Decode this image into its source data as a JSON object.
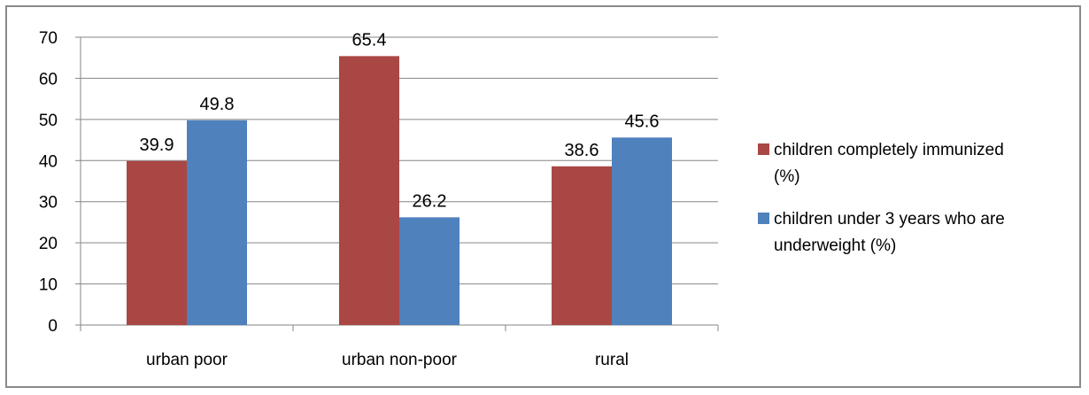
{
  "chart_data": {
    "type": "bar",
    "title": "",
    "xlabel": "",
    "ylabel": "",
    "categories": [
      "urban poor",
      "urban non-poor",
      "rural"
    ],
    "ylim": [
      0,
      70
    ],
    "yticks": [
      0,
      10,
      20,
      30,
      40,
      50,
      60,
      70
    ],
    "grid": true,
    "legend_position": "right",
    "series": [
      {
        "name_lines": [
          "children completely immunized",
          "(%)"
        ],
        "color": "#A94744",
        "values": [
          39.9,
          65.4,
          38.6
        ],
        "labels": [
          "39.9",
          "65.4",
          "38.6"
        ]
      },
      {
        "name_lines": [
          "children under 3 years who are",
          "underweight (%)"
        ],
        "color": "#4F81BD",
        "values": [
          49.8,
          26.2,
          45.6
        ],
        "labels": [
          "49.8",
          "26.2",
          "45.6"
        ]
      }
    ]
  }
}
